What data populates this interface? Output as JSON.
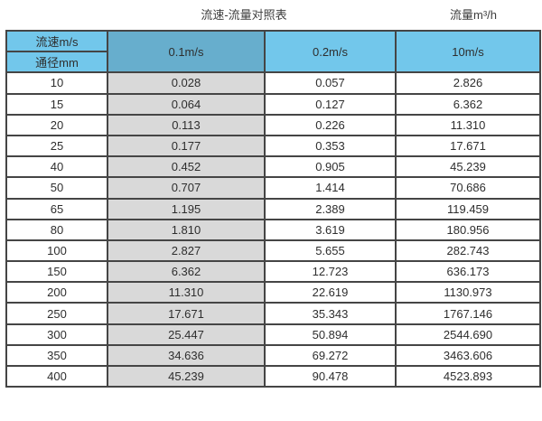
{
  "page": {
    "title_left": "流速-流量对照表",
    "title_right": "流量m³/h"
  },
  "table": {
    "corner_top_label": "流速m/s",
    "corner_bottom_label": "通径mm",
    "velocity_columns": [
      "0.1m/s",
      "0.2m/s",
      "10m/s"
    ],
    "rows": [
      {
        "dn": "10",
        "v01": "0.028",
        "v02": "0.057",
        "v10": "2.826"
      },
      {
        "dn": "15",
        "v01": "0.064",
        "v02": "0.127",
        "v10": "6.362"
      },
      {
        "dn": "20",
        "v01": "0.113",
        "v02": "0.226",
        "v10": "11.310"
      },
      {
        "dn": "25",
        "v01": "0.177",
        "v02": "0.353",
        "v10": "17.671"
      },
      {
        "dn": "40",
        "v01": "0.452",
        "v02": "0.905",
        "v10": "45.239"
      },
      {
        "dn": "50",
        "v01": "0.707",
        "v02": "1.414",
        "v10": "70.686"
      },
      {
        "dn": "65",
        "v01": "1.195",
        "v02": "2.389",
        "v10": "119.459"
      },
      {
        "dn": "80",
        "v01": "1.810",
        "v02": "3.619",
        "v10": "180.956"
      },
      {
        "dn": "100",
        "v01": "2.827",
        "v02": "5.655",
        "v10": "282.743"
      },
      {
        "dn": "150",
        "v01": "6.362",
        "v02": "12.723",
        "v10": "636.173"
      },
      {
        "dn": "200",
        "v01": "11.310",
        "v02": "22.619",
        "v10": "1130.973"
      },
      {
        "dn": "250",
        "v01": "17.671",
        "v02": "35.343",
        "v10": "1767.146"
      },
      {
        "dn": "300",
        "v01": "25.447",
        "v02": "50.894",
        "v10": "2544.690"
      },
      {
        "dn": "350",
        "v01": "34.636",
        "v02": "69.272",
        "v10": "3463.606"
      },
      {
        "dn": "400",
        "v01": "45.239",
        "v02": "90.478",
        "v10": "4523.893"
      }
    ]
  },
  "colors": {
    "header_blue": "#72c7eb",
    "header_blue_dark": "#67aecd",
    "column_gray": "#d9d9d9",
    "border": "#454545"
  },
  "chart_data": {
    "type": "table",
    "title": "流速-流量对照表",
    "unit_label": "流量m³/h",
    "column_header": "流速m/s",
    "row_header": "通径mm",
    "categories": [
      10,
      15,
      20,
      25,
      40,
      50,
      65,
      80,
      100,
      150,
      200,
      250,
      300,
      350,
      400
    ],
    "series": [
      {
        "name": "0.1m/s",
        "values": [
          0.028,
          0.064,
          0.113,
          0.177,
          0.452,
          0.707,
          1.195,
          1.81,
          2.827,
          6.362,
          11.31,
          17.671,
          25.447,
          34.636,
          45.239
        ]
      },
      {
        "name": "0.2m/s",
        "values": [
          0.057,
          0.127,
          0.226,
          0.353,
          0.905,
          1.414,
          2.389,
          3.619,
          5.655,
          12.723,
          22.619,
          35.343,
          50.894,
          69.272,
          90.478
        ]
      },
      {
        "name": "10m/s",
        "values": [
          2.826,
          6.362,
          11.31,
          17.671,
          45.239,
          70.686,
          119.459,
          180.956,
          282.743,
          636.173,
          1130.973,
          1767.146,
          2544.69,
          3463.606,
          4523.893
        ]
      }
    ]
  }
}
